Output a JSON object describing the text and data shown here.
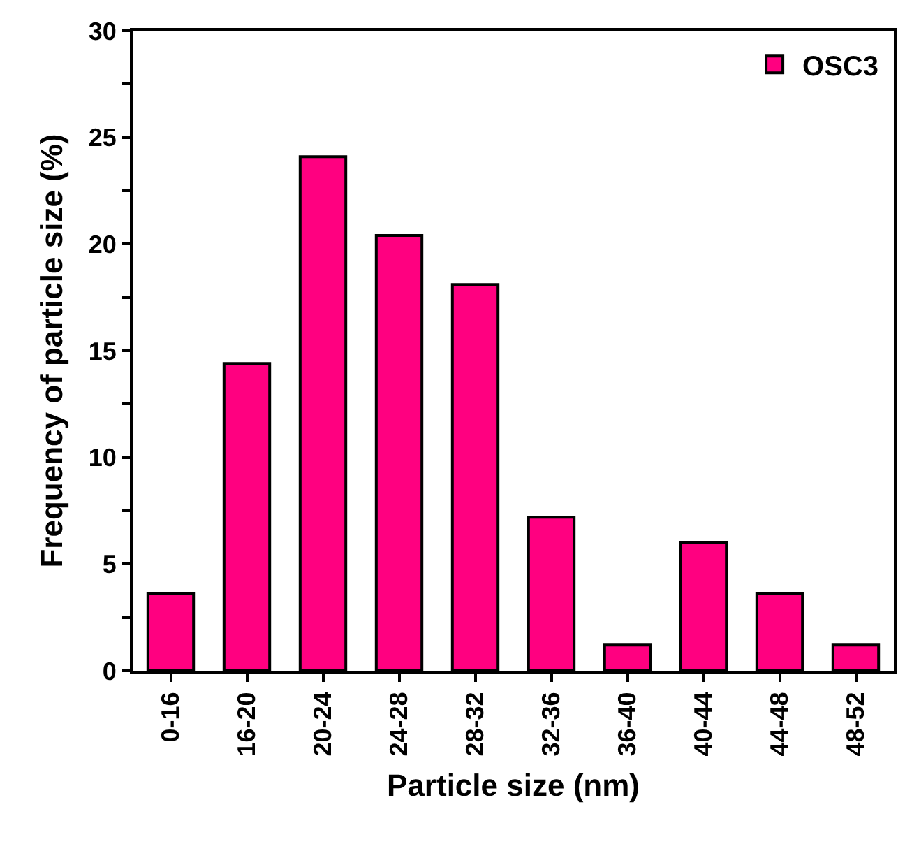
{
  "chart_data": {
    "type": "bar",
    "xlabel": "Particle size (nm)",
    "ylabel": "Frequency of particle size (%)",
    "categories": [
      "0-16",
      "16-20",
      "20-24",
      "24-28",
      "28-32",
      "32-36",
      "36-40",
      "40-44",
      "44-48",
      "48-52"
    ],
    "series": [
      {
        "name": "OSC3",
        "color": "#ff0080",
        "values": [
          3.6,
          14.4,
          24.1,
          20.4,
          18.1,
          7.2,
          1.2,
          6.0,
          3.6,
          1.2
        ]
      }
    ],
    "ylim": [
      0,
      30
    ],
    "yticks": [
      0,
      {
        "value": 2.5,
        "label": null
      },
      5,
      {
        "value": 7.5,
        "label": null
      },
      10,
      {
        "value": 12.5,
        "label": null
      },
      15,
      {
        "value": 17.5,
        "label": null
      },
      20,
      {
        "value": 22.5,
        "label": null
      },
      25,
      {
        "value": 27.5,
        "label": null
      },
      30
    ],
    "grid": false,
    "legend": "top right"
  }
}
